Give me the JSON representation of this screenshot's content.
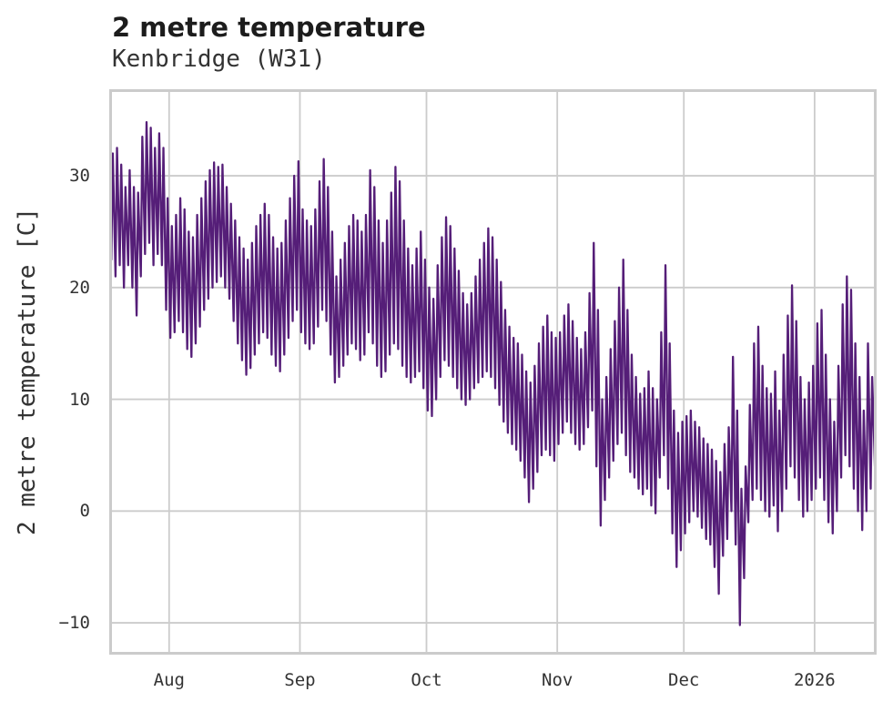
{
  "header": {
    "title": "2 metre temperature",
    "subtitle": "Kenbridge (W31)"
  },
  "colors": {
    "line": "#551E78",
    "grid": "#cccccc",
    "plot_border": "#cbcbcb",
    "title_text": "#1c1c1c",
    "text": "#333333",
    "background": "#ffffff"
  },
  "chart_data": {
    "type": "line",
    "title": "2 metre temperature",
    "subtitle": "Kenbridge (W31)",
    "xlabel": "",
    "ylabel": "2 metre temperature [C]",
    "grid": true,
    "legend": "none",
    "line_color": "#551E78",
    "ylim": [
      -12.6,
      37.5
    ],
    "ytick_values": [
      30,
      20,
      10,
      0,
      -10
    ],
    "ytick_labels": [
      "30",
      "20",
      "10",
      "0",
      "−10"
    ],
    "x_domain_days": [
      0.45,
      181.05
    ],
    "x_description": "x axis is time; day 0 = first day shown (about two weeks before the Aug tick); ticks mark month starts; series is one (min,max) pair per day approximating the dense sub-daily trace",
    "xticks": [
      {
        "label": "Aug",
        "day": 14
      },
      {
        "label": "Sep",
        "day": 45
      },
      {
        "label": "Oct",
        "day": 75
      },
      {
        "label": "Nov",
        "day": 106
      },
      {
        "label": "Dec",
        "day": 136
      },
      {
        "label": "2026",
        "day": 167
      }
    ],
    "series": [
      {
        "name": "daily minimum temperature [C]",
        "values": [
          22.5,
          21,
          22,
          20,
          22,
          20,
          17.5,
          21,
          23,
          24,
          22,
          23,
          22,
          18,
          15.5,
          16,
          17,
          16,
          14.5,
          13.8,
          15,
          16.5,
          18,
          19,
          20,
          20.5,
          21,
          20,
          19,
          17,
          15,
          13.5,
          12.2,
          12.8,
          14,
          15,
          16,
          15.5,
          14,
          13,
          12.5,
          14,
          15.5,
          17,
          18,
          16,
          15,
          14.5,
          15,
          16.5,
          18,
          17,
          14,
          11.5,
          12,
          13,
          14,
          15,
          14.5,
          13.5,
          14,
          16,
          15,
          13,
          12,
          12.5,
          14,
          15,
          14.5,
          13,
          12,
          11.5,
          12,
          12.5,
          11,
          9,
          8.5,
          10,
          12,
          13.5,
          13,
          12,
          11,
          10,
          9.5,
          10,
          11,
          11.5,
          12,
          12.5,
          12,
          11,
          9.5,
          8,
          7,
          6,
          5.5,
          4.5,
          3,
          0.8,
          2,
          3.5,
          5,
          5.5,
          5,
          4.5,
          6,
          7,
          8,
          7,
          6,
          5.5,
          6,
          7.5,
          9,
          4,
          -1.3,
          1,
          3,
          4.5,
          6,
          7,
          5,
          3.5,
          3,
          2,
          1.5,
          2,
          0.5,
          -0.2,
          3,
          5,
          2,
          -2,
          -5,
          -3.5,
          -2,
          -1,
          0,
          -0.5,
          -1.5,
          -2.5,
          -3,
          -5,
          -7.4,
          -4,
          -2.5,
          0,
          -3,
          -10.2,
          -6,
          -1,
          1,
          2,
          1,
          0,
          -0.5,
          0.5,
          -1.8,
          0,
          2,
          4,
          3,
          1,
          -0.5,
          0,
          1,
          2,
          3,
          1,
          -1,
          -2,
          0,
          3,
          5,
          4,
          2,
          0,
          -1.7,
          0,
          2,
          4
        ]
      },
      {
        "name": "daily maximum temperature [C]",
        "values": [
          32,
          32.5,
          31,
          29,
          30.5,
          29,
          28.5,
          33.5,
          34.8,
          34.3,
          32.5,
          33.8,
          32.5,
          28,
          25.5,
          26.5,
          28,
          27,
          25,
          24.5,
          26.5,
          28,
          29.5,
          30.5,
          31.2,
          30.8,
          31,
          29,
          27.5,
          26,
          24.5,
          23.5,
          22.5,
          24,
          25.5,
          26.5,
          27.5,
          26.5,
          24.5,
          23.5,
          24,
          26,
          28,
          30,
          31.3,
          27,
          26,
          25.5,
          27,
          29.5,
          31.5,
          29,
          25,
          21,
          22.5,
          24,
          25.5,
          26.5,
          26,
          25,
          26.5,
          30.5,
          29,
          26,
          24,
          26,
          28.5,
          30.8,
          29.5,
          26,
          23.5,
          22,
          23.5,
          25,
          22.5,
          20,
          19,
          22,
          24.5,
          26.3,
          25.5,
          23.5,
          21.5,
          19.5,
          18.5,
          19.5,
          21,
          22.5,
          24,
          25.3,
          24.5,
          22.5,
          20.5,
          18,
          16.5,
          15.5,
          15,
          14,
          12.5,
          11.5,
          13,
          15,
          16.5,
          17.5,
          16,
          15.5,
          16,
          17.5,
          18.5,
          17,
          15.5,
          14.5,
          16,
          19.5,
          24,
          18,
          10,
          12,
          14.5,
          17,
          20,
          22.5,
          18,
          14,
          12,
          10.5,
          11,
          12.5,
          11,
          10,
          16,
          22,
          15,
          9,
          7,
          8,
          8.5,
          9,
          8,
          7.5,
          6.5,
          6,
          5.5,
          4.5,
          3.5,
          6,
          7.5,
          13.8,
          9,
          2,
          4,
          9.5,
          15,
          16.5,
          13,
          11,
          10.5,
          12.5,
          9,
          14,
          17.5,
          20.2,
          17,
          12,
          10,
          11.5,
          13,
          16.8,
          18,
          14,
          10,
          8,
          13,
          18.5,
          21,
          19.8,
          15,
          12,
          9,
          15,
          12,
          7.5
        ]
      }
    ]
  }
}
